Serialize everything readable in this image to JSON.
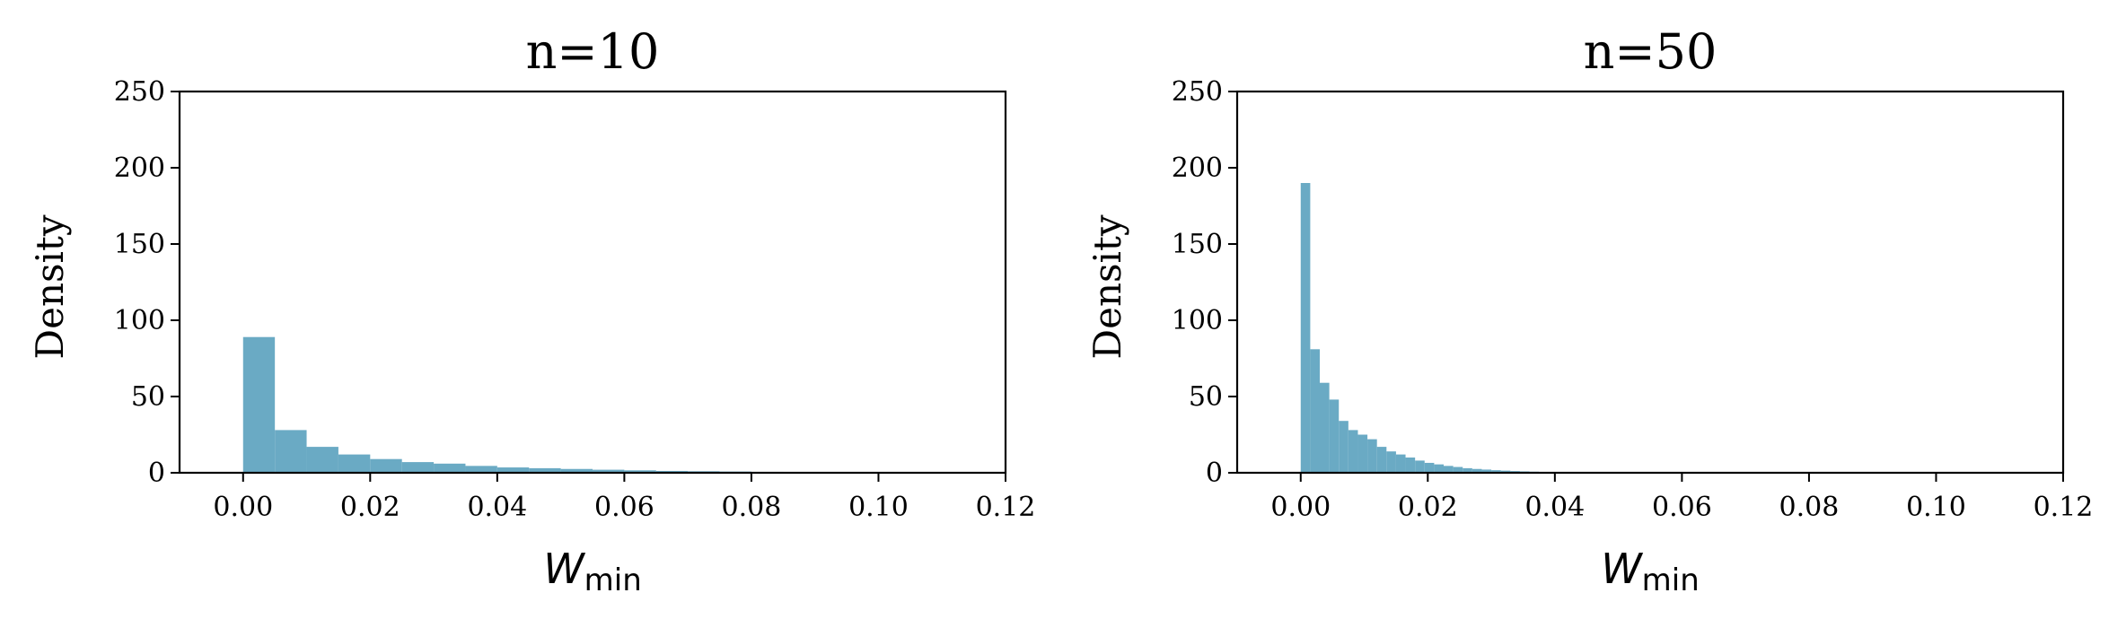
{
  "chart_data": [
    {
      "type": "bar",
      "title": "n=10",
      "xlabel": "W",
      "xlabel_sub": "min",
      "ylabel": "Density",
      "xlim": [
        -0.01,
        0.12
      ],
      "ylim": [
        0,
        250
      ],
      "xticks": [
        "0.00",
        "0.02",
        "0.04",
        "0.06",
        "0.08",
        "0.10",
        "0.12"
      ],
      "xtick_values": [
        0.0,
        0.02,
        0.04,
        0.06,
        0.08,
        0.1,
        0.12
      ],
      "yticks": [
        "0",
        "50",
        "100",
        "150",
        "200",
        "250"
      ],
      "ytick_values": [
        0,
        50,
        100,
        150,
        200,
        250
      ],
      "bin_start": 0.0,
      "bin_width": 0.005,
      "values": [
        89,
        28,
        17,
        12,
        9,
        7,
        6,
        4.5,
        3.5,
        3,
        2.5,
        2,
        1.6,
        1.2,
        1,
        0.8,
        0.6,
        0.5,
        0.4,
        0.3,
        0.25,
        0.2,
        0.15,
        0.1
      ],
      "color": "#6aaac4"
    },
    {
      "type": "bar",
      "title": "n=50",
      "xlabel": "W",
      "xlabel_sub": "min",
      "ylabel": "Density",
      "xlim": [
        -0.01,
        0.12
      ],
      "ylim": [
        0,
        250
      ],
      "xticks": [
        "0.00",
        "0.02",
        "0.04",
        "0.06",
        "0.08",
        "0.10",
        "0.12"
      ],
      "xtick_values": [
        0.0,
        0.02,
        0.04,
        0.06,
        0.08,
        0.1,
        0.12
      ],
      "yticks": [
        "0",
        "50",
        "100",
        "150",
        "200",
        "250"
      ],
      "ytick_values": [
        0,
        50,
        100,
        150,
        200,
        250
      ],
      "bin_start": 0.0,
      "bin_width": 0.0015,
      "values": [
        190,
        81,
        59,
        48,
        34,
        28,
        25,
        22,
        17,
        14,
        12,
        10,
        8,
        6.5,
        5.5,
        4.5,
        3.8,
        3,
        2.5,
        2.1,
        1.7,
        1.4,
        1.1,
        0.9,
        0.7,
        0.5,
        0.4,
        0.3,
        0.2,
        0.15
      ],
      "color": "#6aaac4"
    }
  ]
}
